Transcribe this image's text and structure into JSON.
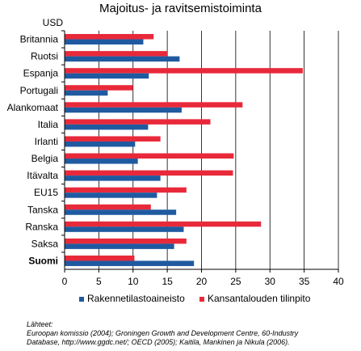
{
  "chart_data": {
    "type": "bar",
    "orientation": "horizontal",
    "title": "Majoitus- ja ravitsemistoiminta",
    "unit_label": "USD",
    "categories": [
      "Britannia",
      "Ruotsi",
      "Espanja",
      "Portugali",
      "Alankomaat",
      "Italia",
      "Irlanti",
      "Belgia",
      "Itävalta",
      "EU15",
      "Tanska",
      "Ranska",
      "Saksa",
      "Suomi"
    ],
    "highlight_category": "Suomi",
    "series": [
      {
        "name": "Rakennetilastoaineisto",
        "color": "#1f5aa0",
        "values": [
          11.5,
          16.8,
          12.3,
          6.3,
          17.1,
          12.2,
          10.3,
          10.7,
          14.0,
          13.5,
          16.3,
          17.4,
          16.0,
          18.9
        ]
      },
      {
        "name": "Kansantalouden tilinpito",
        "color": "#e8293a",
        "values": [
          13.0,
          15.0,
          34.8,
          10.0,
          26.0,
          21.3,
          14.0,
          24.7,
          24.6,
          17.8,
          12.6,
          28.7,
          17.8,
          10.2
        ]
      }
    ],
    "xlim": [
      0,
      40
    ],
    "xticks": [
      "0",
      "5",
      "10",
      "15",
      "20",
      "25",
      "30",
      "35",
      "40"
    ],
    "grid": "vertical",
    "legend_position": "bottom"
  },
  "sources": {
    "heading": "Lähteet:",
    "line1": "Euroopan komissio (2004); Groningen Growth and Development Centre, 60-Industry",
    "line2": "Database, http://www.ggdc.net/; OECD (2005); Kaitila, Mankinen ja Nikula (2006)."
  }
}
